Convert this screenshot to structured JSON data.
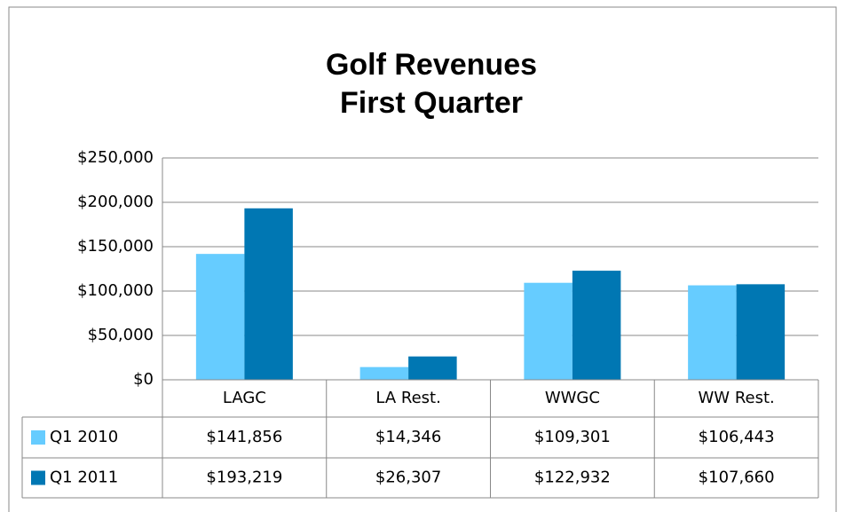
{
  "chart_data": {
    "type": "bar",
    "title": "Golf Revenues",
    "subtitle": "First Quarter",
    "categories": [
      "LAGC",
      "LA Rest.",
      "WWGC",
      "WW Rest."
    ],
    "series": [
      {
        "name": "Q1 2010",
        "color": "#66ccff",
        "values": [
          141856,
          14346,
          109301,
          106443
        ],
        "value_labels": [
          "$141,856",
          "$14,346",
          "$109,301",
          "$106,443"
        ]
      },
      {
        "name": "Q1 2011",
        "color": "#0077b3",
        "values": [
          193219,
          26307,
          122932,
          107660
        ],
        "value_labels": [
          "$193,219",
          "$26,307",
          "$122,932",
          "$107,660"
        ]
      }
    ],
    "ylim": [
      0,
      250000
    ],
    "yticks": [
      {
        "value": 0,
        "label": "$0"
      },
      {
        "value": 50000,
        "label": "$50,000"
      },
      {
        "value": 100000,
        "label": "$100,000"
      },
      {
        "value": 150000,
        "label": "$150,000"
      },
      {
        "value": 200000,
        "label": "$200,000"
      },
      {
        "value": 250000,
        "label": "$250,000"
      }
    ],
    "grid": true,
    "data_table": true
  }
}
